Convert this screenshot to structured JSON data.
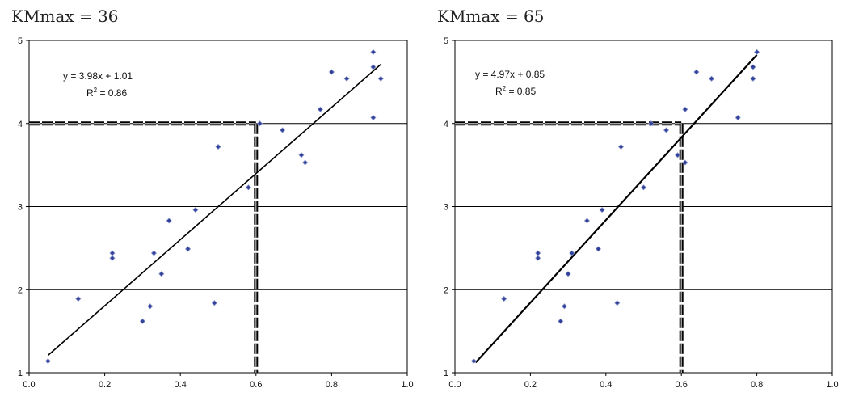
{
  "chart_data": [
    {
      "type": "scatter",
      "title": "KMmax = 36",
      "xlim": [
        0.0,
        1.0
      ],
      "ylim": [
        1,
        5
      ],
      "xticks": [
        "0.0",
        "0.2",
        "0.4",
        "0.6",
        "0.8",
        "1.0"
      ],
      "yticks": [
        "1",
        "2",
        "3",
        "4",
        "5"
      ],
      "grid": "horizontal",
      "equation": "y = 3.98x + 1.01",
      "r2_prefix": "R",
      "r2_sup": "2",
      "r2_value": " = 0.86",
      "fit": {
        "slope": 3.98,
        "intercept": 1.01,
        "x_range": [
          0.05,
          0.93
        ]
      },
      "reference": {
        "x": 0.6,
        "y": 4.0
      },
      "points": [
        [
          0.05,
          1.14
        ],
        [
          0.13,
          1.89
        ],
        [
          0.22,
          2.44
        ],
        [
          0.22,
          2.38
        ],
        [
          0.3,
          1.62
        ],
        [
          0.32,
          1.8
        ],
        [
          0.33,
          2.44
        ],
        [
          0.35,
          2.19
        ],
        [
          0.37,
          2.83
        ],
        [
          0.42,
          2.49
        ],
        [
          0.44,
          2.96
        ],
        [
          0.49,
          1.84
        ],
        [
          0.5,
          3.72
        ],
        [
          0.58,
          3.23
        ],
        [
          0.61,
          4.0
        ],
        [
          0.67,
          3.92
        ],
        [
          0.72,
          3.62
        ],
        [
          0.73,
          3.53
        ],
        [
          0.77,
          4.17
        ],
        [
          0.8,
          4.62
        ],
        [
          0.84,
          4.54
        ],
        [
          0.91,
          4.86
        ],
        [
          0.91,
          4.68
        ],
        [
          0.91,
          4.07
        ],
        [
          0.93,
          4.54
        ]
      ]
    },
    {
      "type": "scatter",
      "title": "KMmax = 65",
      "xlim": [
        0.0,
        1.0
      ],
      "ylim": [
        1,
        5
      ],
      "xticks": [
        "0.0",
        "0.2",
        "0.4",
        "0.6",
        "0.8",
        "1.0"
      ],
      "yticks": [
        "1",
        "2",
        "3",
        "4",
        "5"
      ],
      "grid": "horizontal",
      "equation": "y = 4.97x + 0.85",
      "r2_prefix": "R",
      "r2_sup": "2",
      "r2_value": " = 0.85",
      "fit": {
        "slope": 4.97,
        "intercept": 0.85,
        "x_range": [
          0.055,
          0.8
        ]
      },
      "reference": {
        "x": 0.6,
        "y": 4.0
      },
      "points": [
        [
          0.05,
          1.14
        ],
        [
          0.13,
          1.89
        ],
        [
          0.22,
          2.44
        ],
        [
          0.22,
          2.38
        ],
        [
          0.28,
          1.62
        ],
        [
          0.29,
          1.8
        ],
        [
          0.3,
          2.19
        ],
        [
          0.31,
          2.44
        ],
        [
          0.35,
          2.83
        ],
        [
          0.38,
          2.49
        ],
        [
          0.39,
          2.96
        ],
        [
          0.43,
          1.84
        ],
        [
          0.44,
          3.72
        ],
        [
          0.5,
          3.23
        ],
        [
          0.52,
          4.0
        ],
        [
          0.56,
          3.92
        ],
        [
          0.59,
          3.62
        ],
        [
          0.61,
          3.53
        ],
        [
          0.61,
          4.17
        ],
        [
          0.64,
          4.62
        ],
        [
          0.68,
          4.54
        ],
        [
          0.75,
          4.07
        ],
        [
          0.79,
          4.68
        ],
        [
          0.79,
          4.54
        ],
        [
          0.8,
          4.86
        ]
      ]
    }
  ]
}
